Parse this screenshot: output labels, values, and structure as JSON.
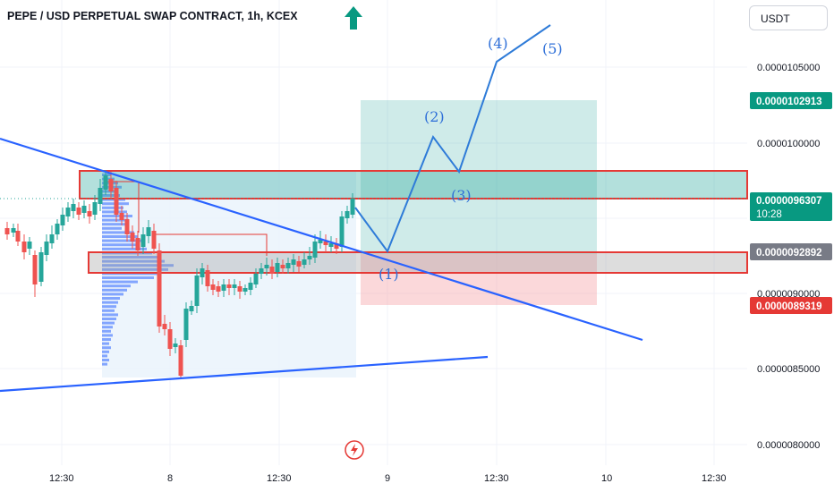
{
  "title": "PEPE / USD PERPETUAL SWAP CONTRACT, 1h, KCEX",
  "currency_selector": "USDT",
  "colors": {
    "bull": "#26a69a",
    "bear": "#ef5350",
    "trendline": "#2962ff",
    "target_zone": "#26a69a",
    "stop_zone": "#f7a9ad",
    "box_border": "#e53935",
    "profile": "#2962ff"
  },
  "chart_data": {
    "type": "candlestick",
    "y_ticks": [
      "0.0000105000",
      "0.0000100000",
      "0.0000090000",
      "0.0000085000",
      "0.0000080000"
    ],
    "x_ticks": [
      "12:30",
      "8",
      "12:30",
      "9",
      "12:30",
      "10",
      "12:30"
    ],
    "price_tags": [
      {
        "label": "0.0000102913",
        "sub": "",
        "kind": "target"
      },
      {
        "label": "0.0000096307",
        "sub": "10:28",
        "kind": "last"
      },
      {
        "label": "0.0000092892",
        "sub": "",
        "kind": "entry"
      },
      {
        "label": "0.0000089319",
        "sub": "",
        "kind": "stop"
      }
    ],
    "wave_labels": [
      "(1)",
      "(2)",
      "(3)",
      "(4)",
      "(5)"
    ]
  }
}
